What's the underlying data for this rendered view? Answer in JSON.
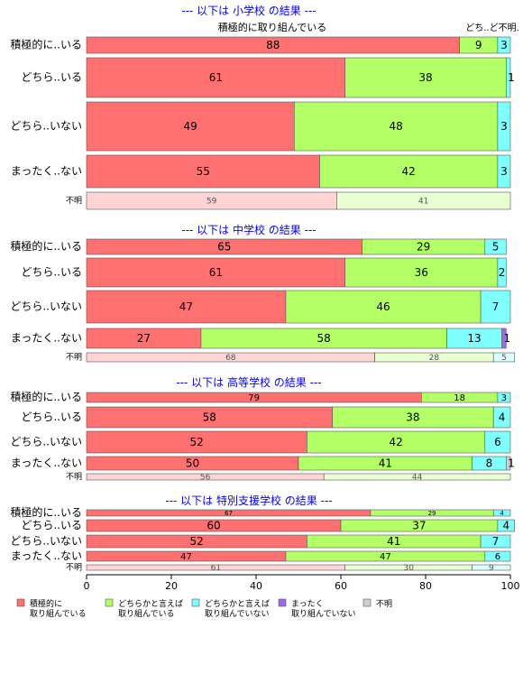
{
  "colors": {
    "c1": "#ff7070",
    "c2": "#b3ff66",
    "c3": "#80ffff",
    "c4": "#a066ee",
    "c5": "#d0d0d0",
    "title": "#0000ff"
  },
  "top_notes": {
    "center": "積極的に取り組んでいる",
    "right": "どち..ど不明."
  },
  "chart_data": {
    "type": "bar",
    "orientation": "horizontal",
    "stacked": true,
    "xlim": [
      0,
      100
    ],
    "xticks": [
      "0",
      "20",
      "40",
      "60",
      "80",
      "100"
    ],
    "legend_position": "bottom",
    "legend": [
      {
        "key": "c1",
        "line1": "積極的に",
        "line2": "取り組んでいる"
      },
      {
        "key": "c2",
        "line1": "どちらかと言えば",
        "line2": "取り組んでいる"
      },
      {
        "key": "c3",
        "line1": "どちらかと言えば",
        "line2": "取り組んでいない"
      },
      {
        "key": "c4",
        "line1": "まったく",
        "line2": "取り組んでいない"
      },
      {
        "key": "c5",
        "line1": "不明",
        "line2": ""
      }
    ],
    "panels": [
      {
        "title": "--- 以下は 小学校 の結果 ---",
        "rows": [
          {
            "label": "積極的に..いる",
            "values": [
              88,
              9,
              3,
              0,
              0
            ]
          },
          {
            "label": "どちら..いる",
            "values": [
              61,
              38,
              1,
              0,
              0
            ]
          },
          {
            "label": "どちら..いない",
            "values": [
              49,
              48,
              3,
              0,
              0
            ]
          },
          {
            "label": "まったく..ない",
            "values": [
              55,
              42,
              3,
              0,
              0
            ]
          },
          {
            "label": "不明",
            "values": [
              59,
              41,
              0,
              0,
              0
            ],
            "faded": true
          }
        ]
      },
      {
        "title": "--- 以下は 中学校 の結果 ---",
        "rows": [
          {
            "label": "積極的に..いる",
            "values": [
              65,
              29,
              5,
              0,
              0
            ]
          },
          {
            "label": "どちら..いる",
            "values": [
              61,
              36,
              2,
              0,
              0
            ]
          },
          {
            "label": "どちら..いない",
            "values": [
              47,
              46,
              7,
              0,
              0
            ]
          },
          {
            "label": "まったく..ない",
            "values": [
              27,
              58,
              13,
              1,
              0
            ]
          },
          {
            "label": "不明",
            "values": [
              68,
              28,
              5,
              0,
              0
            ],
            "faded": true
          }
        ]
      },
      {
        "title": "--- 以下は 高等学校 の結果 ---",
        "rows": [
          {
            "label": "積極的に..いる",
            "values": [
              79,
              18,
              3,
              0,
              0
            ]
          },
          {
            "label": "どちら..いる",
            "values": [
              58,
              38,
              4,
              0,
              0
            ]
          },
          {
            "label": "どちら..いない",
            "values": [
              52,
              42,
              6,
              0,
              0
            ]
          },
          {
            "label": "まったく..ない",
            "values": [
              50,
              41,
              8,
              0,
              1
            ]
          },
          {
            "label": "不明",
            "values": [
              56,
              44,
              0,
              0,
              0
            ],
            "faded": true
          }
        ]
      },
      {
        "title": "--- 以下は 特別支援学校 の結果 ---",
        "rows": [
          {
            "label": "積極的に..いる",
            "values": [
              67,
              29,
              4,
              0,
              0
            ]
          },
          {
            "label": "どちら..いる",
            "values": [
              60,
              37,
              4,
              0,
              0
            ]
          },
          {
            "label": "どちら..いない",
            "values": [
              52,
              41,
              7,
              0,
              0
            ]
          },
          {
            "label": "まったく..ない",
            "values": [
              47,
              47,
              6,
              0,
              0
            ]
          },
          {
            "label": "不明",
            "values": [
              61,
              30,
              9,
              0,
              0
            ],
            "faded": true
          }
        ]
      }
    ]
  }
}
